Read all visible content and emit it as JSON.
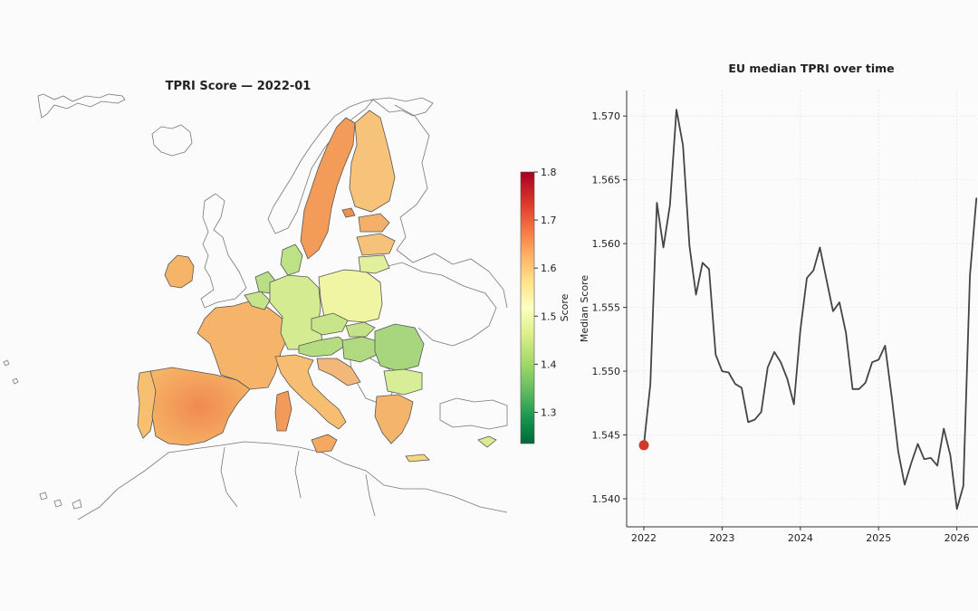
{
  "map_panel": {
    "title": "TPRI Score — 2022-01",
    "colorbar": {
      "label": "Score",
      "ticks": [
        "1.3",
        "1.4",
        "1.5",
        "1.6",
        "1.7",
        "1.8"
      ],
      "vmin": 1.235,
      "vmax": 1.8,
      "colormap": "RdYlGn_r",
      "colors": [
        "#006837",
        "#1a9850",
        "#66bd63",
        "#a6d96a",
        "#d9ef8b",
        "#ffffbf",
        "#fee08b",
        "#fdae61",
        "#f46d43",
        "#d73027",
        "#a50026"
      ]
    }
  },
  "chart_data": {
    "type": "line",
    "title": "EU median TPRI over time",
    "xlabel": "",
    "ylabel": "Median Score",
    "xlim": [
      2021.78,
      2026.27
    ],
    "ylim": [
      1.5378,
      1.572
    ],
    "x_ticks": [
      "2022",
      "2023",
      "2024",
      "2025",
      "2026"
    ],
    "y_ticks": [
      "1.540",
      "1.545",
      "1.550",
      "1.555",
      "1.560",
      "1.565",
      "1.570"
    ],
    "grid": true,
    "line_color": "#444444",
    "marker_color": "#d03a2b",
    "current_point": {
      "x": 2022.0,
      "y": 1.5442
    },
    "series": [
      {
        "x": [
          2022.0,
          2022.083,
          2022.167,
          2022.25,
          2022.333,
          2022.417,
          2022.5,
          2022.583,
          2022.667,
          2022.75,
          2022.833,
          2022.917,
          2023.0,
          2023.083,
          2023.167,
          2023.25,
          2023.333,
          2023.417,
          2023.5,
          2023.583,
          2023.667,
          2023.75,
          2023.833,
          2023.917,
          2024.0,
          2024.083,
          2024.167,
          2024.25,
          2024.333,
          2024.417,
          2024.5,
          2024.583,
          2024.667,
          2024.75,
          2024.833,
          2024.917,
          2025.0,
          2025.083,
          2025.167,
          2025.25,
          2025.333,
          2025.417,
          2025.5,
          2025.583,
          2025.667,
          2025.75,
          2025.833,
          2025.917,
          2026.0,
          2026.083,
          2026.167,
          2026.25
        ],
        "y": [
          1.5442,
          1.549,
          1.5632,
          1.5597,
          1.563,
          1.5705,
          1.5677,
          1.5598,
          1.556,
          1.5585,
          1.558,
          1.5513,
          1.55,
          1.5499,
          1.549,
          1.5487,
          1.546,
          1.5462,
          1.5468,
          1.5503,
          1.5515,
          1.5507,
          1.5494,
          1.5474,
          1.5532,
          1.5573,
          1.5579,
          1.5597,
          1.5572,
          1.5547,
          1.5554,
          1.553,
          1.5486,
          1.5486,
          1.5491,
          1.5507,
          1.5509,
          1.552,
          1.548,
          1.5437,
          1.5411,
          1.5428,
          1.5443,
          1.5431,
          1.5432,
          1.5426,
          1.5455,
          1.5434,
          1.5392,
          1.541,
          1.5575,
          1.5636
        ]
      }
    ]
  }
}
